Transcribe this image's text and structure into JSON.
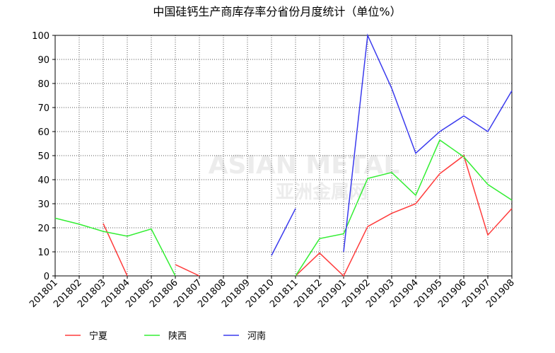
{
  "chart_data": {
    "type": "line",
    "title": "中国硅钙生产商库存率分省份月度统计（单位%）",
    "watermark": [
      "ASIAN METAL",
      "亚洲金属网"
    ],
    "categories": [
      "201801",
      "201802",
      "201803",
      "201804",
      "201805",
      "201806",
      "201807",
      "201808",
      "201809",
      "201810",
      "201811",
      "201812",
      "201901",
      "201902",
      "201903",
      "201904",
      "201905",
      "201906",
      "201907",
      "201908"
    ],
    "series": [
      {
        "name": "宁夏",
        "color": "#ff3b3b",
        "values": [
          null,
          null,
          21.8,
          0,
          null,
          4.7,
          0,
          null,
          null,
          null,
          0,
          9.5,
          0,
          20.5,
          26,
          30,
          42.5,
          50,
          17,
          28
        ]
      },
      {
        "name": "陕西",
        "color": "#33ee33",
        "values": [
          24,
          21.5,
          18.5,
          16.5,
          19.5,
          0,
          null,
          null,
          null,
          null,
          0,
          15.5,
          17.5,
          40.5,
          43,
          33.5,
          56.5,
          49.5,
          38,
          31.5
        ]
      },
      {
        "name": "河南",
        "color": "#3a3aee",
        "values": [
          null,
          null,
          null,
          null,
          null,
          null,
          null,
          null,
          null,
          8.5,
          28,
          null,
          10,
          100,
          78,
          51,
          60,
          66.5,
          60,
          77
        ]
      }
    ],
    "ylim": [
      0,
      100
    ],
    "yticks": [
      0,
      10,
      20,
      30,
      40,
      50,
      60,
      70,
      80,
      90,
      100
    ],
    "grid": true,
    "legend": "bottom"
  }
}
